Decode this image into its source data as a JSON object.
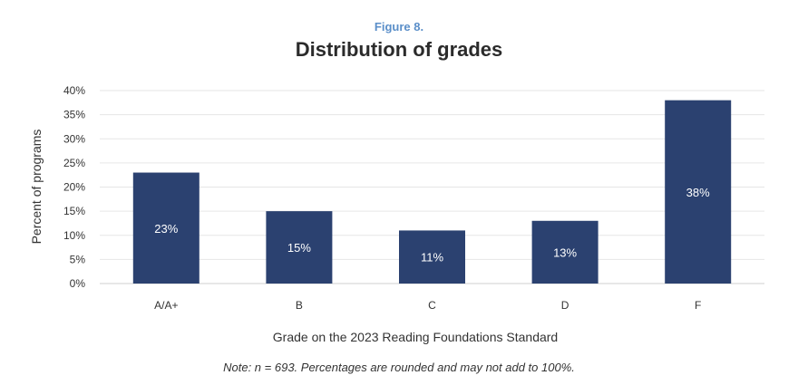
{
  "figure_label": "Figure 8.",
  "note": "Note: n = 693. Percentages are rounded and may not add to 100%.",
  "colors": {
    "bar": "#2b4170",
    "grid": "#e6e6e6",
    "figure_label": "#5b8fc9"
  },
  "chart_data": {
    "type": "bar",
    "title": "Distribution of grades",
    "xlabel": "Grade on the 2023 Reading Foundations Standard",
    "ylabel": "Percent of programs",
    "categories": [
      "A/A+",
      "B",
      "C",
      "D",
      "F"
    ],
    "values": [
      23,
      15,
      11,
      13,
      38
    ],
    "data_labels": [
      "23%",
      "15%",
      "11%",
      "13%",
      "38%"
    ],
    "ylim": [
      0,
      40
    ],
    "yticks": [
      0,
      5,
      10,
      15,
      20,
      25,
      30,
      35,
      40
    ],
    "ytick_labels": [
      "0%",
      "5%",
      "10%",
      "15%",
      "20%",
      "25%",
      "30%",
      "35%",
      "40%"
    ],
    "grid": true,
    "legend": "none"
  }
}
